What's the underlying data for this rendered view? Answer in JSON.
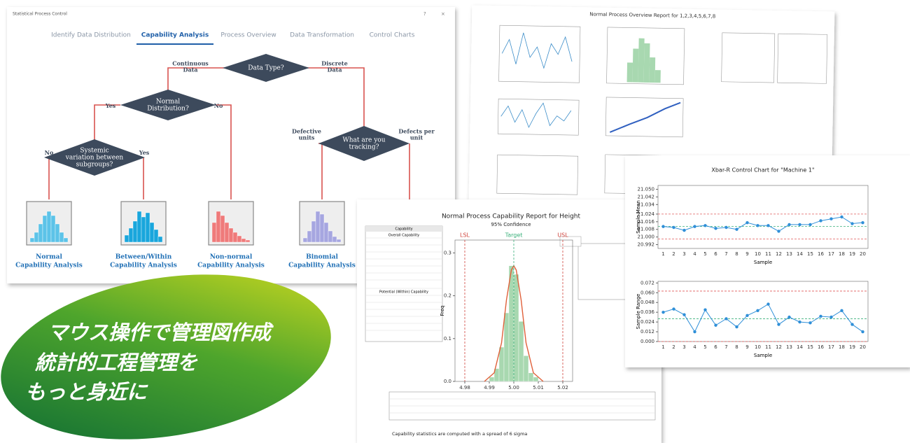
{
  "window": {
    "title": "Statistical Process Control",
    "tabs": [
      "Identify Data Distribution",
      "Capability Analysis",
      "Process Overview",
      "Data Transformation",
      "Control Charts"
    ],
    "active_tab": "Capability Analysis",
    "flowchart": {
      "nodes": [
        "Data Type?",
        [
          "Normal",
          "Distribution?"
        ],
        [
          "Systemic",
          "variation between",
          "subgroups?"
        ],
        [
          "What are you",
          "tracking?"
        ]
      ],
      "edges": [
        [
          "Continuous",
          "Data"
        ],
        [
          "Discrete",
          "Data"
        ],
        "Yes",
        "No",
        "No",
        "Yes",
        [
          "Defective",
          "units"
        ],
        [
          "Defects per",
          "unit"
        ]
      ],
      "outcomes": [
        [
          "Normal",
          "Capability Analysis"
        ],
        [
          "Between/Within",
          "Capability Analysis"
        ],
        [
          "Non-normal",
          "Capability Analysis"
        ],
        [
          "Binomial",
          "Capability Analysis"
        ]
      ]
    }
  },
  "overview_report": {
    "title": "Normal Process Overview Report for 1,2,3,4,5,6,7,8"
  },
  "capability_report": {
    "title": "Normal Process Capability Report for Height",
    "subtitle": "95% Confidence",
    "table_headers": [
      "Capability",
      "Overall Capability",
      "Potential (Within) Capability"
    ],
    "footer": "Capability statistics are computed with a spread of 6 sigma",
    "chart_data": {
      "type": "histogram",
      "y_label": "Freq",
      "bins": [
        4.99,
        4.992,
        4.994,
        4.996,
        4.998,
        5.0,
        5.002,
        5.004,
        5.006,
        5.008,
        5.01
      ],
      "values": [
        0.01,
        0.03,
        0.08,
        0.16,
        0.27,
        0.25,
        0.14,
        0.06,
        0.02,
        0.01
      ],
      "color": "#a8d8b0",
      "curve": {
        "x": [
          4.988,
          4.992,
          4.995,
          4.997,
          4.999,
          5.0,
          5.001,
          5.003,
          5.005,
          5.008,
          5.012
        ],
        "y": [
          0.0,
          0.02,
          0.09,
          0.19,
          0.26,
          0.27,
          0.26,
          0.19,
          0.09,
          0.02,
          0.0
        ],
        "color": "#e0603a"
      },
      "spec_lines": [
        {
          "name": "LSL",
          "value": 4.98
        },
        {
          "name": "Target",
          "value": 5.0
        },
        {
          "name": "USL",
          "value": 5.02
        }
      ],
      "xlim": [
        4.976,
        5.024
      ],
      "xticks": [
        4.98,
        4.99,
        {
          "value": 5.0,
          "label": "5.00"
        },
        5.01,
        5.02
      ],
      "ylim": [
        0,
        0.33
      ],
      "yticks": [
        {
          "value": 0,
          "label": "0.0"
        },
        0.1,
        0.2,
        0.3
      ]
    }
  },
  "control_chart": {
    "title": "Xbar-R Control Chart for \"Machine 1\"",
    "charts": [
      {
        "type": "line",
        "y_label": "Sample Mean",
        "x_label": "Sample",
        "x": [
          1,
          2,
          3,
          4,
          5,
          6,
          7,
          8,
          9,
          10,
          11,
          12,
          13,
          14,
          15,
          16,
          17,
          18,
          19,
          20
        ],
        "values": [
          21.011,
          21.01,
          21.007,
          21.011,
          21.012,
          21.009,
          21.01,
          21.008,
          21.015,
          21.012,
          21.012,
          21.006,
          21.013,
          21.013,
          21.013,
          21.017,
          21.019,
          21.021,
          21.014,
          21.015
        ],
        "color": "#2f8fd8",
        "limits": [
          {
            "value": 21.024,
            "color": "#e05a5a"
          },
          {
            "value": 21.011,
            "color": "#3ab07a"
          },
          {
            "value": 20.998,
            "color": "#e05a5a"
          }
        ],
        "xlim": [
          0.5,
          20.5
        ],
        "ylim": [
          20.988,
          21.054
        ],
        "yticks": [
          20.992,
          {
            "value": 21.0,
            "label": "21.000"
          },
          21.008,
          21.016,
          21.024,
          21.034,
          21.042,
          {
            "value": 21.05,
            "label": "21.050"
          }
        ]
      },
      {
        "type": "line",
        "y_label": "Sample Range",
        "x_label": "Sample",
        "x": [
          1,
          2,
          3,
          4,
          5,
          6,
          7,
          8,
          9,
          10,
          11,
          12,
          13,
          14,
          15,
          16,
          17,
          18,
          19,
          20
        ],
        "values": [
          0.036,
          0.04,
          0.033,
          0.012,
          0.039,
          0.02,
          0.028,
          0.018,
          0.032,
          0.038,
          0.046,
          0.021,
          0.03,
          0.024,
          0.023,
          0.031,
          0.03,
          0.038,
          0.021,
          0.012
        ],
        "color": "#2f8fd8",
        "limits": [
          {
            "value": 0.062,
            "color": "#e05a5a"
          },
          {
            "value": 0.028,
            "color": "#3ab07a"
          },
          {
            "value": 0,
            "color": "#e05a5a"
          }
        ],
        "xlim": [
          0.5,
          20.5
        ],
        "ylim": [
          0,
          0.074
        ],
        "yticks": [
          {
            "value": 0,
            "label": "0.000"
          },
          {
            "value": 0.012,
            "label": "0.012"
          },
          {
            "value": 0.024,
            "label": "0.024"
          },
          {
            "value": 0.036,
            "label": "0.036"
          },
          {
            "value": 0.048,
            "label": "0.048"
          },
          {
            "value": 0.06,
            "label": "0.060"
          },
          {
            "value": 0.072,
            "label": "0.072"
          }
        ]
      }
    ]
  },
  "slogan": [
    "マウス操作で管理図作成",
    "統計的工程管理を",
    "もっと身近に"
  ]
}
